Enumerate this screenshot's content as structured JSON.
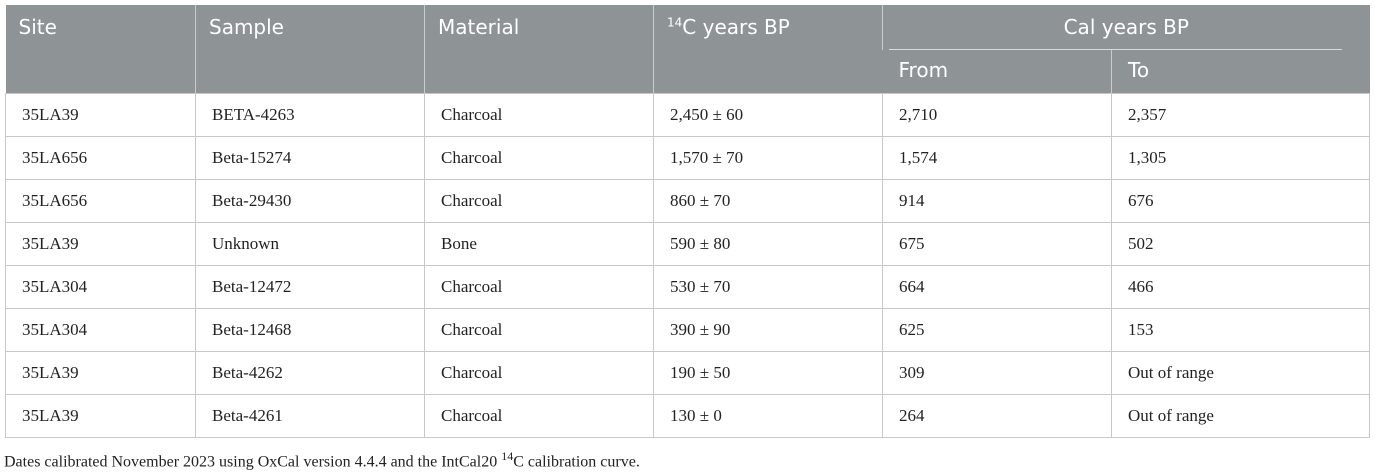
{
  "table": {
    "header": {
      "columns": [
        "Site",
        "Sample",
        "Material",
        {
          "sup": "14",
          "text": "C years BP"
        }
      ],
      "group": "Cal years BP",
      "subcolumns": [
        "From",
        "To"
      ]
    },
    "rows": [
      [
        "35LA39",
        "BETA-4263",
        "Charcoal",
        "2,450 ± 60",
        "2,710",
        "2,357"
      ],
      [
        "35LA656",
        "Beta-15274",
        "Charcoal",
        "1,570 ± 70",
        "1,574",
        "1,305"
      ],
      [
        "35LA656",
        "Beta-29430",
        "Charcoal",
        "860 ± 70",
        "914",
        "676"
      ],
      [
        "35LA39",
        "Unknown",
        "Bone",
        "590 ± 80",
        "675",
        "502"
      ],
      [
        "35LA304",
        "Beta-12472",
        "Charcoal",
        "530 ± 70",
        "664",
        "466"
      ],
      [
        "35LA304",
        "Beta-12468",
        "Charcoal",
        "390 ± 90",
        "625",
        "153"
      ],
      [
        "35LA39",
        "Beta-4262",
        "Charcoal",
        "190 ± 50",
        "309",
        "Out of range"
      ],
      [
        "35LA39",
        "Beta-4261",
        "Charcoal",
        "130 ± 0",
        "264",
        "Out of range"
      ]
    ]
  },
  "footnote": {
    "before": "Dates calibrated November 2023 using OxCal version 4.4.4 and the IntCal20 ",
    "sup": "14",
    "after": "C calibration curve."
  }
}
